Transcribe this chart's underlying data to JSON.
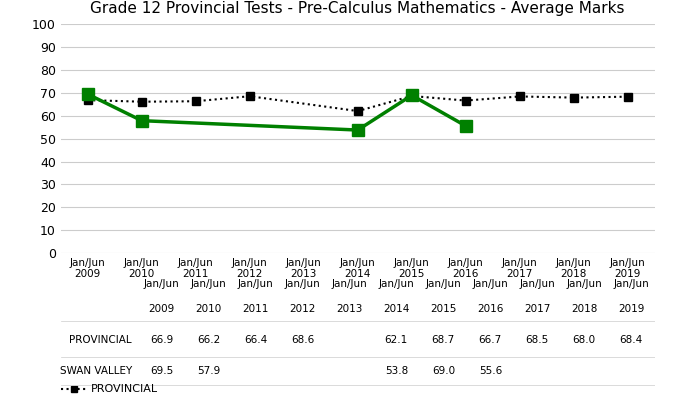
{
  "title": "Grade 12 Provincial Tests - Pre-Calculus Mathematics - Average Marks",
  "x_labels": [
    "Jan/Jun\n2009",
    "Jan/Jun\n2010",
    "Jan/Jun\n2011",
    "Jan/Jun\n2012",
    "Jan/Jun\n2013",
    "Jan/Jun\n2014",
    "Jan/Jun\n2015",
    "Jan/Jun\n2016",
    "Jan/Jun\n2017",
    "Jan/Jun\n2018",
    "Jan/Jun\n2019"
  ],
  "x_indices": [
    0,
    1,
    2,
    3,
    4,
    5,
    6,
    7,
    8,
    9,
    10
  ],
  "provincial_x": [
    0,
    1,
    2,
    3,
    5,
    6,
    7,
    8,
    9,
    10
  ],
  "provincial_y": [
    66.9,
    66.2,
    66.4,
    68.6,
    62.1,
    68.7,
    66.7,
    68.5,
    68.0,
    68.4
  ],
  "swan_valley_x": [
    0,
    1,
    5,
    6,
    7
  ],
  "swan_valley_y": [
    69.5,
    57.9,
    53.8,
    69.0,
    55.6
  ],
  "ylim": [
    0,
    100
  ],
  "yticks": [
    0,
    10,
    20,
    30,
    40,
    50,
    60,
    70,
    80,
    90,
    100
  ],
  "provincial_color": "#000000",
  "swan_valley_color": "#008000",
  "legend_provincial": "PROVINCIAL",
  "legend_swan": "SWAN VALLEY",
  "table_provincial_values": [
    "66.9",
    "66.2",
    "66.4",
    "68.6",
    "",
    "62.1",
    "68.7",
    "66.7",
    "68.5",
    "68.0",
    "68.4"
  ],
  "table_swan_values": [
    "69.5",
    "57.9",
    "",
    "",
    "",
    "53.8",
    "69.0",
    "55.6",
    "",
    "",
    ""
  ],
  "background_color": "#ffffff",
  "title_fontsize": 11
}
